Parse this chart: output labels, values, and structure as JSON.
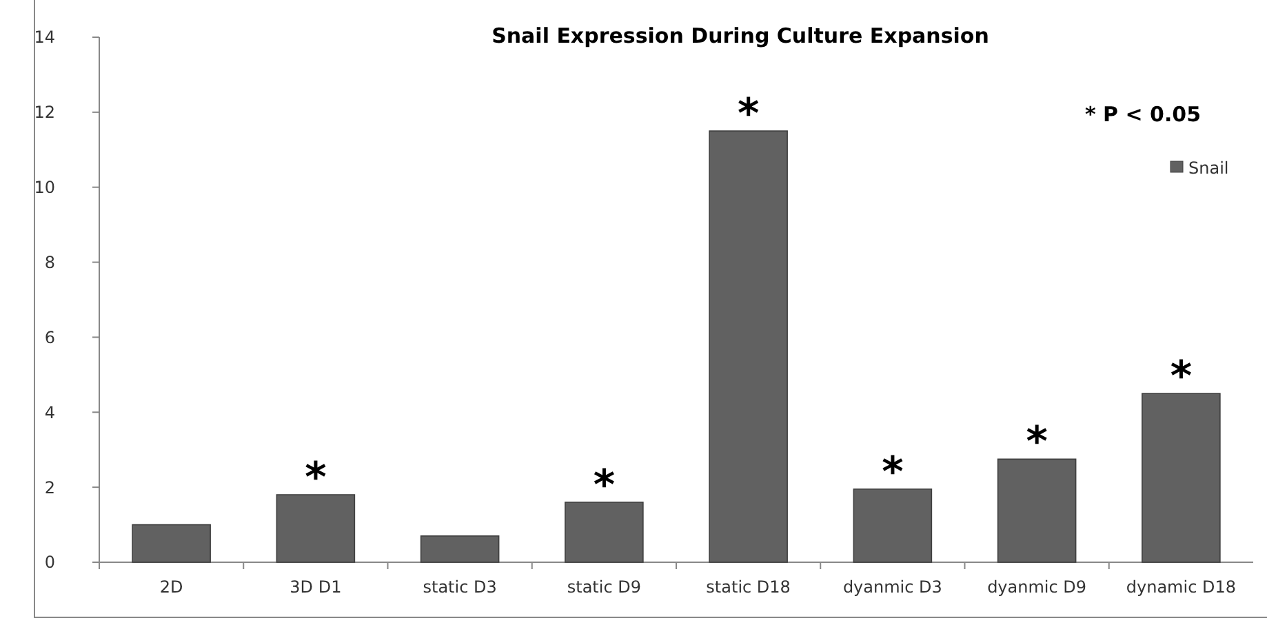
{
  "chart_data": {
    "type": "bar",
    "title": "Snail  Expression During Culture Expansion",
    "categories": [
      "2D",
      "3D D1",
      "static D3",
      "static D9",
      "static D18",
      "dyanmic D3",
      "dyanmic D9",
      "dynamic D18"
    ],
    "series": [
      {
        "name": "Snail",
        "color": "#616161",
        "values": [
          1.0,
          1.8,
          0.7,
          1.6,
          11.5,
          1.95,
          2.75,
          4.5
        ]
      }
    ],
    "ylim": [
      0,
      14
    ],
    "yticks": [
      0,
      2,
      4,
      6,
      8,
      10,
      12,
      14
    ],
    "grid": false,
    "legend": "top right",
    "annotations": [
      {
        "text": "*",
        "x": "3D D1",
        "y": 1.8
      },
      {
        "text": "*",
        "x": "static D9",
        "y": 1.6
      },
      {
        "text": "*",
        "x": "static D18",
        "y": 11.5
      },
      {
        "text": "*",
        "x": "dyanmic D3",
        "y": 1.95
      },
      {
        "text": "*",
        "x": "dyanmic D9",
        "y": 2.75
      },
      {
        "text": "*",
        "x": "dynamic D18",
        "y": 4.5
      },
      "*  P < 0.05"
    ]
  }
}
